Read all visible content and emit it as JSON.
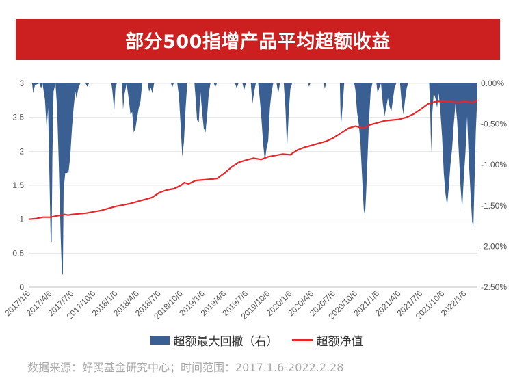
{
  "header": {
    "title": "部分500指增产品平均超额收益"
  },
  "source_note": "数据来源：好买基金研究中心；时间范围：2017.1.6-2022.2.28",
  "colors": {
    "title_bg": "#cc1f1f",
    "drawdown": "#3a5f93",
    "nav_line": "#e8262a"
  },
  "chart_data": {
    "type": "line",
    "title": "部分500指增产品平均超额收益",
    "left_axis": {
      "ylim": [
        0,
        3
      ],
      "ticks": [
        "0",
        "0.5",
        "1",
        "1.5",
        "2",
        "2.5",
        "3"
      ]
    },
    "right_axis": {
      "ylim": [
        -2.5,
        0
      ],
      "unit": "%",
      "ticks": [
        "-2.50%",
        "-2.00%",
        "-1.50%",
        "-1.00%",
        "-0.50%",
        "0.00%"
      ]
    },
    "x_range": [
      "2017-01-06",
      "2022-02-28"
    ],
    "x_tick_labels": [
      "2017/1/6",
      "2017/4/6",
      "2017/7/6",
      "2017/10/6",
      "2018/1/6",
      "2018/4/6",
      "2018/7/6",
      "2018/10/6",
      "2019/1/6",
      "2019/4/6",
      "2019/7/6",
      "2019/10/6",
      "2020/1/6",
      "2020/4/6",
      "2020/7/6",
      "2020/10/6",
      "2021/1/6",
      "2021/4/6",
      "2021/7/6",
      "2021/10/6",
      "2022/1/6"
    ],
    "grid": "horizontal",
    "legend_position": "bottom",
    "series": [
      {
        "name": "超额最大回撤（右）",
        "type": "area",
        "axis": "right",
        "points": [
          [
            "2017-01-06",
            0
          ],
          [
            "2017-01-20",
            0
          ],
          [
            "2017-01-25",
            -0.12
          ],
          [
            "2017-02-01",
            -0.02
          ],
          [
            "2017-02-20",
            0
          ],
          [
            "2017-02-27",
            -0.06
          ],
          [
            "2017-03-05",
            0
          ],
          [
            "2017-03-15",
            -0.2
          ],
          [
            "2017-03-22",
            -0.55
          ],
          [
            "2017-03-28",
            -0.3
          ],
          [
            "2017-04-03",
            -1.2
          ],
          [
            "2017-04-08",
            -1.93
          ],
          [
            "2017-04-12",
            -1.95
          ],
          [
            "2017-04-15",
            -0.9
          ],
          [
            "2017-04-20",
            -0.1
          ],
          [
            "2017-04-28",
            0
          ],
          [
            "2017-05-05",
            -0.3
          ],
          [
            "2017-05-12",
            -1.0
          ],
          [
            "2017-05-20",
            -1.9
          ],
          [
            "2017-05-25",
            -2.33
          ],
          [
            "2017-05-29",
            -2.35
          ],
          [
            "2017-06-01",
            -1.3
          ],
          [
            "2017-06-08",
            -1.1
          ],
          [
            "2017-06-15",
            -1.1
          ],
          [
            "2017-06-22",
            -1.08
          ],
          [
            "2017-06-29",
            -0.9
          ],
          [
            "2017-07-06",
            -0.55
          ],
          [
            "2017-07-13",
            -0.3
          ],
          [
            "2017-07-20",
            -0.1
          ],
          [
            "2017-07-25",
            -0.18
          ],
          [
            "2017-08-02",
            -0.06
          ],
          [
            "2017-08-10",
            0
          ],
          [
            "2017-09-01",
            0
          ],
          [
            "2017-09-08",
            -0.04
          ],
          [
            "2017-09-15",
            0
          ],
          [
            "2017-12-18",
            0
          ],
          [
            "2017-12-22",
            -0.08
          ],
          [
            "2017-12-30",
            -0.34
          ],
          [
            "2018-01-04",
            -0.05
          ],
          [
            "2018-01-10",
            0
          ],
          [
            "2018-02-01",
            0
          ],
          [
            "2018-02-05",
            -0.32
          ],
          [
            "2018-02-12",
            -0.12
          ],
          [
            "2018-02-20",
            0
          ],
          [
            "2018-03-01",
            -0.2
          ],
          [
            "2018-03-08",
            -0.38
          ],
          [
            "2018-03-15",
            -0.35
          ],
          [
            "2018-03-22",
            -0.6
          ],
          [
            "2018-03-29",
            -0.55
          ],
          [
            "2018-04-05",
            -0.42
          ],
          [
            "2018-04-12",
            -0.3
          ],
          [
            "2018-04-19",
            -0.22
          ],
          [
            "2018-04-26",
            0
          ],
          [
            "2018-05-20",
            0
          ],
          [
            "2018-05-25",
            -0.1
          ],
          [
            "2018-06-01",
            -0.05
          ],
          [
            "2018-06-08",
            -0.12
          ],
          [
            "2018-06-15",
            0
          ],
          [
            "2018-08-25",
            0
          ],
          [
            "2018-08-30",
            -0.05
          ],
          [
            "2018-09-05",
            0
          ],
          [
            "2018-09-20",
            0
          ],
          [
            "2018-09-27",
            -0.15
          ],
          [
            "2018-10-04",
            -0.5
          ],
          [
            "2018-10-11",
            -0.9
          ],
          [
            "2018-10-18",
            -0.72
          ],
          [
            "2018-10-25",
            -0.3
          ],
          [
            "2018-11-01",
            0
          ],
          [
            "2018-12-01",
            0
          ],
          [
            "2018-12-05",
            -0.15
          ],
          [
            "2018-12-12",
            -0.45
          ],
          [
            "2018-12-19",
            -0.48
          ],
          [
            "2018-12-26",
            -0.1
          ],
          [
            "2019-01-02",
            -0.35
          ],
          [
            "2019-01-09",
            -0.55
          ],
          [
            "2019-01-16",
            -0.6
          ],
          [
            "2019-01-23",
            -0.4
          ],
          [
            "2019-01-30",
            -0.12
          ],
          [
            "2019-02-06",
            0
          ],
          [
            "2019-02-20",
            0
          ],
          [
            "2019-02-27",
            -0.04
          ],
          [
            "2019-03-05",
            0
          ],
          [
            "2019-05-20",
            0
          ],
          [
            "2019-05-27",
            -0.06
          ],
          [
            "2019-06-03",
            0
          ],
          [
            "2019-06-20",
            0
          ],
          [
            "2019-06-27",
            -0.08
          ],
          [
            "2019-07-04",
            0
          ],
          [
            "2019-07-25",
            0
          ],
          [
            "2019-08-01",
            -0.25
          ],
          [
            "2019-08-08",
            -0.1
          ],
          [
            "2019-08-15",
            0
          ],
          [
            "2019-08-25",
            0
          ],
          [
            "2019-09-01",
            -0.2
          ],
          [
            "2019-09-08",
            -0.45
          ],
          [
            "2019-09-15",
            -0.75
          ],
          [
            "2019-09-22",
            -0.95
          ],
          [
            "2019-09-29",
            -0.8
          ],
          [
            "2019-10-06",
            -0.7
          ],
          [
            "2019-10-13",
            -0.3
          ],
          [
            "2019-10-20",
            -0.1
          ],
          [
            "2019-10-27",
            0
          ],
          [
            "2019-11-10",
            0
          ],
          [
            "2019-11-17",
            -0.12
          ],
          [
            "2019-11-24",
            0
          ],
          [
            "2019-12-10",
            0
          ],
          [
            "2019-12-17",
            -0.3
          ],
          [
            "2019-12-24",
            -0.8
          ],
          [
            "2019-12-31",
            -0.35
          ],
          [
            "2020-01-07",
            -0.06
          ],
          [
            "2020-01-14",
            0
          ],
          [
            "2020-03-20",
            0
          ],
          [
            "2020-03-25",
            -0.04
          ],
          [
            "2020-03-30",
            0
          ],
          [
            "2020-05-25",
            0
          ],
          [
            "2020-05-30",
            -0.06
          ],
          [
            "2020-06-04",
            0
          ],
          [
            "2020-08-01",
            0
          ],
          [
            "2020-08-05",
            -0.55
          ],
          [
            "2020-08-12",
            -0.3
          ],
          [
            "2020-08-19",
            0
          ],
          [
            "2020-09-30",
            0
          ],
          [
            "2020-10-05",
            -0.08
          ],
          [
            "2020-10-12",
            -0.35
          ],
          [
            "2020-10-19",
            -0.5
          ],
          [
            "2020-10-26",
            -0.72
          ],
          [
            "2020-11-02",
            -1.15
          ],
          [
            "2020-11-09",
            -1.55
          ],
          [
            "2020-11-14",
            -1.62
          ],
          [
            "2020-11-19",
            -1.35
          ],
          [
            "2020-11-25",
            -0.9
          ],
          [
            "2020-12-01",
            -0.45
          ],
          [
            "2020-12-08",
            -0.1
          ],
          [
            "2020-12-15",
            0
          ],
          [
            "2021-01-01",
            0
          ],
          [
            "2021-01-06",
            -0.12
          ],
          [
            "2021-01-13",
            -0.05
          ],
          [
            "2021-01-20",
            0
          ],
          [
            "2021-01-28",
            -0.25
          ],
          [
            "2021-02-04",
            -0.4
          ],
          [
            "2021-02-11",
            -0.3
          ],
          [
            "2021-02-18",
            -0.18
          ],
          [
            "2021-02-25",
            -0.28
          ],
          [
            "2021-03-04",
            -0.35
          ],
          [
            "2021-03-11",
            -0.2
          ],
          [
            "2021-03-18",
            -0.05
          ],
          [
            "2021-03-25",
            0
          ],
          [
            "2021-04-10",
            0
          ],
          [
            "2021-04-17",
            -0.25
          ],
          [
            "2021-04-24",
            -0.38
          ],
          [
            "2021-05-01",
            -0.2
          ],
          [
            "2021-05-08",
            -0.05
          ],
          [
            "2021-05-15",
            0
          ],
          [
            "2021-08-10",
            0
          ],
          [
            "2021-08-14",
            -0.3
          ],
          [
            "2021-08-18",
            -0.85
          ],
          [
            "2021-08-22",
            -0.4
          ],
          [
            "2021-08-29",
            -0.12
          ],
          [
            "2021-09-05",
            -0.18
          ],
          [
            "2021-09-12",
            -0.3
          ],
          [
            "2021-09-19",
            -0.12
          ],
          [
            "2021-09-26",
            -0.35
          ],
          [
            "2021-10-03",
            -0.65
          ],
          [
            "2021-10-10",
            -1.1
          ],
          [
            "2021-10-17",
            -1.35
          ],
          [
            "2021-10-24",
            -1.5
          ],
          [
            "2021-10-31",
            -1.28
          ],
          [
            "2021-11-07",
            -1.0
          ],
          [
            "2021-11-14",
            -0.8
          ],
          [
            "2021-11-21",
            -0.5
          ],
          [
            "2021-11-28",
            -0.25
          ],
          [
            "2021-12-05",
            -0.45
          ],
          [
            "2021-12-12",
            -0.85
          ],
          [
            "2021-12-19",
            -1.25
          ],
          [
            "2021-12-26",
            -1.55
          ],
          [
            "2022-01-02",
            -1.15
          ],
          [
            "2022-01-09",
            -0.85
          ],
          [
            "2022-01-16",
            -0.4
          ],
          [
            "2022-01-23",
            -0.95
          ],
          [
            "2022-01-30",
            -1.35
          ],
          [
            "2022-02-06",
            -1.7
          ],
          [
            "2022-02-11",
            -1.75
          ],
          [
            "2022-02-16",
            -1.2
          ],
          [
            "2022-02-21",
            -0.6
          ],
          [
            "2022-02-28",
            -0.12
          ]
        ]
      },
      {
        "name": "超额净值",
        "type": "line",
        "axis": "left",
        "points": [
          [
            "2017-01-06",
            1.0
          ],
          [
            "2017-02-06",
            1.01
          ],
          [
            "2017-03-06",
            1.03
          ],
          [
            "2017-04-06",
            1.03
          ],
          [
            "2017-05-06",
            1.05
          ],
          [
            "2017-06-06",
            1.07
          ],
          [
            "2017-06-20",
            1.06
          ],
          [
            "2017-07-06",
            1.07
          ],
          [
            "2017-08-06",
            1.08
          ],
          [
            "2017-09-06",
            1.09
          ],
          [
            "2017-10-06",
            1.11
          ],
          [
            "2017-11-06",
            1.13
          ],
          [
            "2017-12-06",
            1.16
          ],
          [
            "2018-01-06",
            1.19
          ],
          [
            "2018-02-06",
            1.21
          ],
          [
            "2018-03-06",
            1.23
          ],
          [
            "2018-04-06",
            1.26
          ],
          [
            "2018-05-06",
            1.29
          ],
          [
            "2018-06-06",
            1.32
          ],
          [
            "2018-07-06",
            1.39
          ],
          [
            "2018-08-06",
            1.43
          ],
          [
            "2018-09-06",
            1.45
          ],
          [
            "2018-10-06",
            1.5
          ],
          [
            "2018-10-20",
            1.54
          ],
          [
            "2018-11-06",
            1.52
          ],
          [
            "2018-12-06",
            1.57
          ],
          [
            "2019-01-06",
            1.58
          ],
          [
            "2019-02-06",
            1.59
          ],
          [
            "2019-03-06",
            1.6
          ],
          [
            "2019-04-06",
            1.68
          ],
          [
            "2019-05-06",
            1.77
          ],
          [
            "2019-06-06",
            1.84
          ],
          [
            "2019-07-06",
            1.87
          ],
          [
            "2019-08-06",
            1.9
          ],
          [
            "2019-09-06",
            1.88
          ],
          [
            "2019-10-06",
            1.92
          ],
          [
            "2019-11-06",
            1.94
          ],
          [
            "2019-12-06",
            1.96
          ],
          [
            "2020-01-06",
            1.95
          ],
          [
            "2020-02-06",
            2.02
          ],
          [
            "2020-03-06",
            2.06
          ],
          [
            "2020-04-06",
            2.09
          ],
          [
            "2020-05-06",
            2.12
          ],
          [
            "2020-06-06",
            2.15
          ],
          [
            "2020-07-06",
            2.2
          ],
          [
            "2020-08-06",
            2.27
          ],
          [
            "2020-09-06",
            2.34
          ],
          [
            "2020-10-06",
            2.37
          ],
          [
            "2020-10-25",
            2.35
          ],
          [
            "2020-11-10",
            2.34
          ],
          [
            "2020-12-06",
            2.39
          ],
          [
            "2021-01-06",
            2.42
          ],
          [
            "2021-02-06",
            2.45
          ],
          [
            "2021-03-06",
            2.46
          ],
          [
            "2021-04-06",
            2.47
          ],
          [
            "2021-05-06",
            2.5
          ],
          [
            "2021-06-06",
            2.55
          ],
          [
            "2021-07-06",
            2.62
          ],
          [
            "2021-08-06",
            2.7
          ],
          [
            "2021-09-06",
            2.73
          ],
          [
            "2021-10-06",
            2.74
          ],
          [
            "2021-11-06",
            2.73
          ],
          [
            "2021-12-06",
            2.72
          ],
          [
            "2022-01-06",
            2.73
          ],
          [
            "2022-02-06",
            2.72
          ],
          [
            "2022-02-20",
            2.73
          ],
          [
            "2022-02-28",
            2.76
          ]
        ]
      }
    ]
  }
}
